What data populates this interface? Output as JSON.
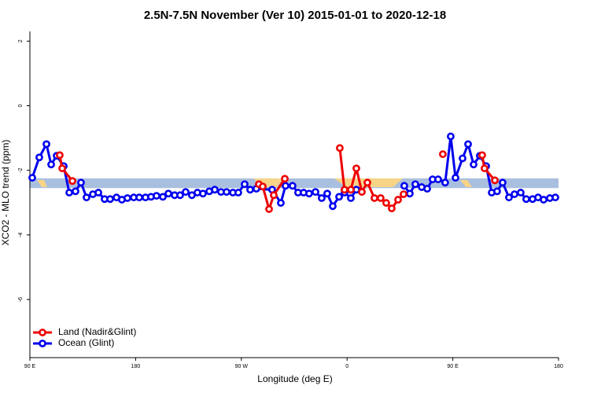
{
  "chart_data": {
    "type": "line",
    "title": "2.5N-7.5N November (Ver 10)   2015-01-01 to 2020-12-18",
    "x_label": "Longitude (deg E)",
    "y_label": "XCO2 - MLO trend (ppm)",
    "xlim": [
      90,
      540
    ],
    "ylim": [
      -7.8,
      2.3
    ],
    "xticks": [
      {
        "value": 90,
        "label": "90 E"
      },
      {
        "value": 180,
        "label": "180"
      },
      {
        "value": 270,
        "label": "90 W"
      },
      {
        "value": 360,
        "label": "0"
      },
      {
        "value": 450,
        "label": "90 E"
      },
      {
        "value": 540,
        "label": "180"
      }
    ],
    "yticks": [
      2,
      0,
      -2,
      -4,
      -6
    ],
    "band": {
      "ylim": [
        -2.55,
        -2.25
      ],
      "color": "#a9bfdf"
    },
    "legend": "bottom-left",
    "series": [
      {
        "name": "Ocean (Glint)",
        "color": "#0000ee",
        "x": [
          92.0,
          98.0,
          104.1,
          108.1,
          112.8,
          118.8,
          123.5,
          128.8,
          133.5,
          138.2,
          143.6,
          148.3,
          153.6,
          158.3,
          163.7,
          168.3,
          173.0,
          178.4,
          183.1,
          188.4,
          193.1,
          197.8,
          203.2,
          207.9,
          213.2,
          217.9,
          222.6,
          227.9,
          232.6,
          237.3,
          242.7,
          247.4,
          252.7,
          257.4,
          262.8,
          267.4,
          272.8,
          277.5,
          282.8,
          296.2,
          303.6,
          307.6,
          313.6,
          318.3,
          323.0,
          327.7,
          333.1,
          338.4,
          343.1,
          347.8,
          353.2,
          357.8,
          363.2,
          367.9,
          388.0,
          408.7,
          413.4,
          418.1,
          423.5,
          428.2,
          432.8,
          437.5,
          443.5,
          448.2,
          452.3,
          458.3,
          463.0,
          467.7,
          473.0,
          478.4,
          483.1,
          487.7,
          492.4,
          497.8,
          502.5,
          507.8,
          512.5,
          517.9,
          522.6,
          527.3,
          532.6,
          537.3
        ],
        "values": [
          -2.23,
          -1.6,
          -1.19,
          -1.82,
          -1.55,
          -1.87,
          -2.69,
          -2.65,
          -2.38,
          -2.84,
          -2.74,
          -2.69,
          -2.89,
          -2.89,
          -2.84,
          -2.91,
          -2.86,
          -2.84,
          -2.84,
          -2.84,
          -2.82,
          -2.79,
          -2.82,
          -2.72,
          -2.77,
          -2.77,
          -2.67,
          -2.77,
          -2.69,
          -2.72,
          -2.65,
          -2.6,
          -2.67,
          -2.67,
          -2.69,
          -2.69,
          -2.43,
          -2.6,
          -2.57,
          -2.6,
          -3.01,
          -2.48,
          -2.48,
          -2.69,
          -2.69,
          -2.72,
          -2.67,
          -2.86,
          -2.72,
          -3.11,
          -2.82,
          -2.69,
          -2.86,
          -2.6,
          null,
          -2.48,
          -2.72,
          -2.43,
          -2.52,
          -2.57,
          -2.28,
          -2.28,
          -2.38,
          -0.95,
          -2.23,
          -1.63,
          -1.19,
          -1.82,
          -1.55,
          -1.87,
          -2.69,
          -2.65,
          -2.38,
          -2.84,
          -2.74,
          -2.69,
          -2.89,
          -2.89,
          -2.84,
          -2.91,
          -2.86,
          -2.84
        ]
      },
      {
        "name": "Land (Nadir&Glint)",
        "color": "#ee0000",
        "x": [
          115.4,
          117.5,
          126.2,
          200.0,
          284.9,
          288.2,
          293.6,
          297.6,
          307.0,
          330.0,
          353.8,
          357.8,
          363.2,
          367.9,
          372.6,
          377.3,
          383.3,
          388.6,
          393.3,
          398.0,
          403.4,
          408.1,
          425.0,
          441.5,
          460.0,
          475.0,
          477.0,
          485.8
        ],
        "values": [
          -1.53,
          -1.94,
          -2.33,
          null,
          -2.43,
          -2.5,
          -3.2,
          -2.77,
          -2.26,
          null,
          -1.31,
          -2.6,
          -2.6,
          -1.94,
          -2.67,
          -2.38,
          -2.86,
          -2.86,
          -3.01,
          -3.18,
          -2.91,
          -2.74,
          null,
          -1.5,
          null,
          -1.53,
          -1.94,
          -2.31
        ]
      }
    ]
  }
}
